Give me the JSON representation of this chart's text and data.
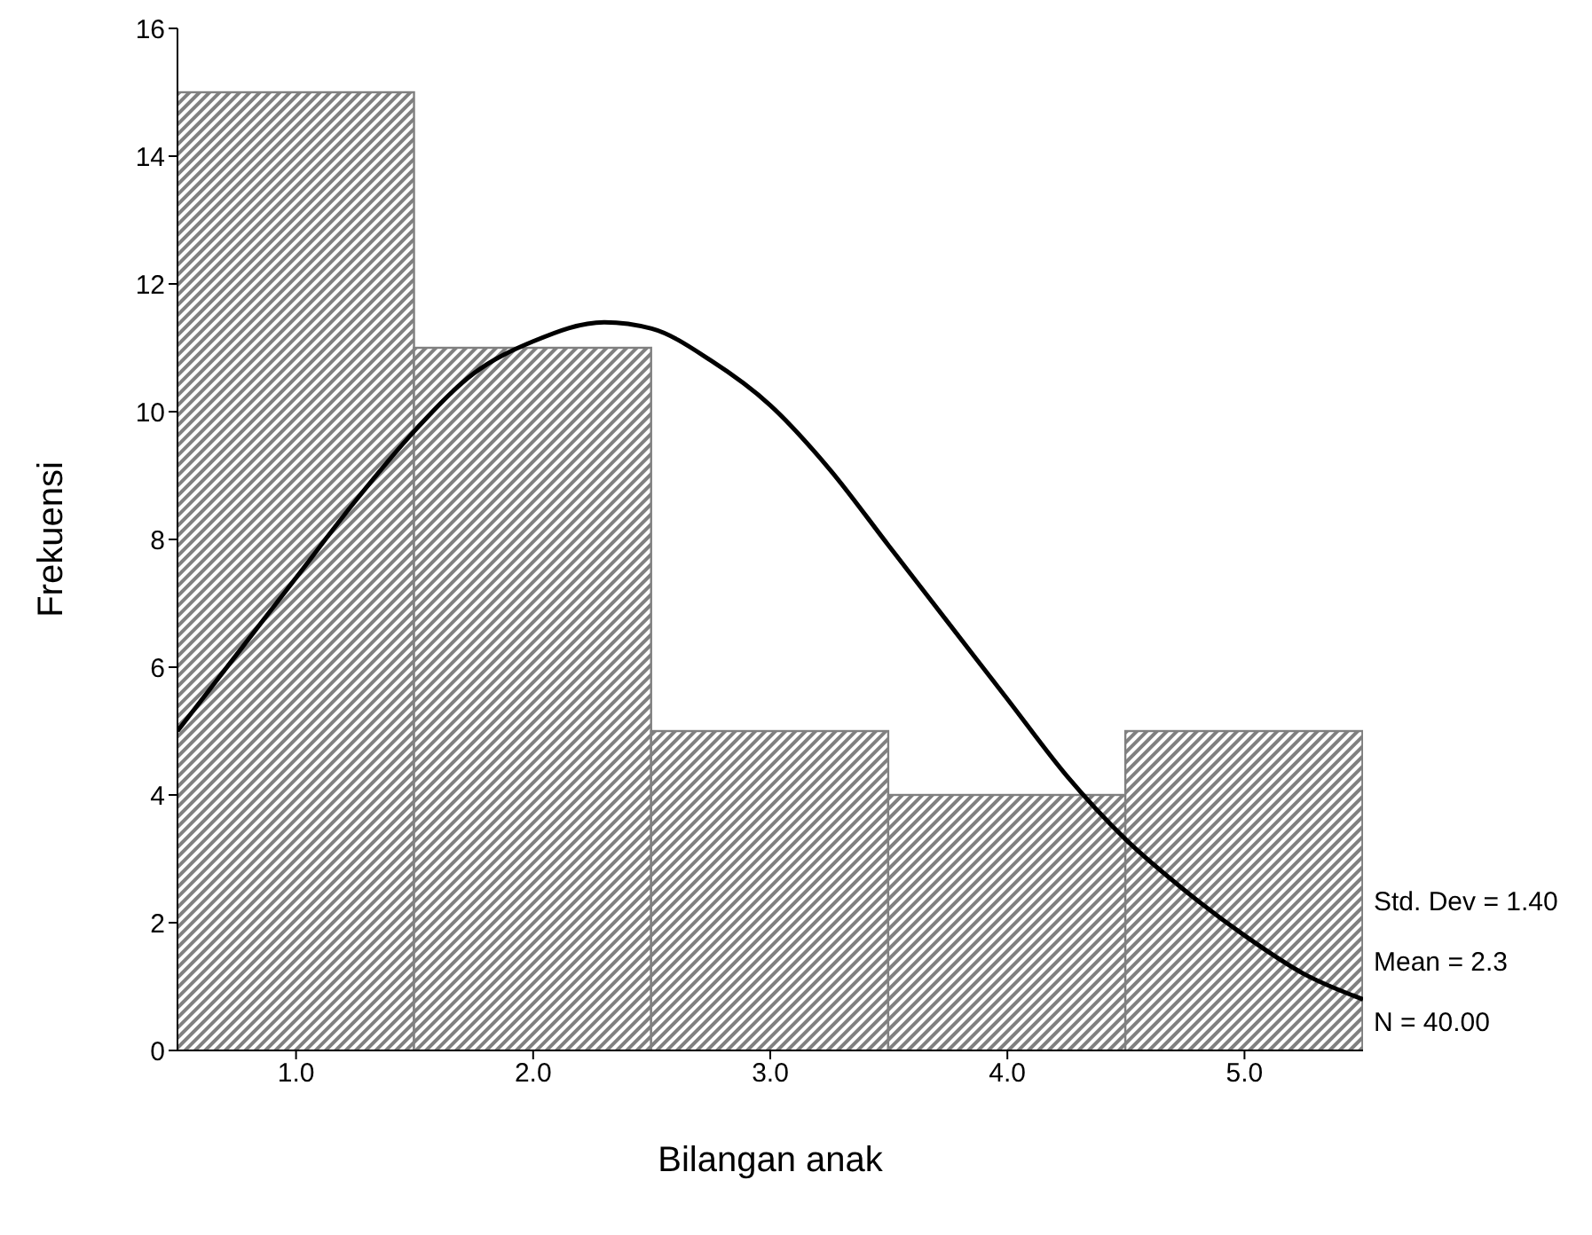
{
  "chart_data": {
    "type": "histogram",
    "xlabel": "Bilangan anak",
    "ylabel": "Frekuensi",
    "bins": [
      0.5,
      1.5,
      2.5,
      3.5,
      4.5,
      5.5
    ],
    "values": [
      15,
      11,
      5,
      4,
      5
    ],
    "color": "#808080",
    "series": [
      {
        "type": "line",
        "color": "#000000",
        "x": [
          0.5,
          0.75,
          1,
          1.25,
          1.5,
          1.75,
          2,
          2.3,
          2.5,
          2.75,
          3,
          3.25,
          3.5,
          3.75,
          4,
          4.25,
          4.5,
          4.75,
          5,
          5.25,
          5.5
        ],
        "values": [
          5.0,
          6.2,
          7.4,
          8.6,
          9.7,
          10.6,
          11.1,
          11.4,
          11.3,
          10.8,
          10.1,
          9.1,
          7.9,
          6.7,
          5.5,
          4.3,
          3.3,
          2.5,
          1.8,
          1.2,
          0.8
        ]
      }
    ],
    "marker": "none",
    "xlim": [
      0.5,
      5.5
    ],
    "xticks": [
      {
        "value": 1,
        "label": "1.0"
      },
      {
        "value": 2,
        "label": "2.0"
      },
      {
        "value": 3,
        "label": "3.0"
      },
      {
        "value": 4,
        "label": "4.0"
      },
      {
        "value": 5,
        "label": "5.0"
      }
    ],
    "ylim": [
      0,
      16
    ],
    "yticks": [
      0,
      2,
      4,
      6,
      8,
      10,
      12,
      14,
      16
    ],
    "annotations": [
      "Std. Dev = 1.40",
      "Mean = 2.3",
      "N = 40.00"
    ]
  }
}
